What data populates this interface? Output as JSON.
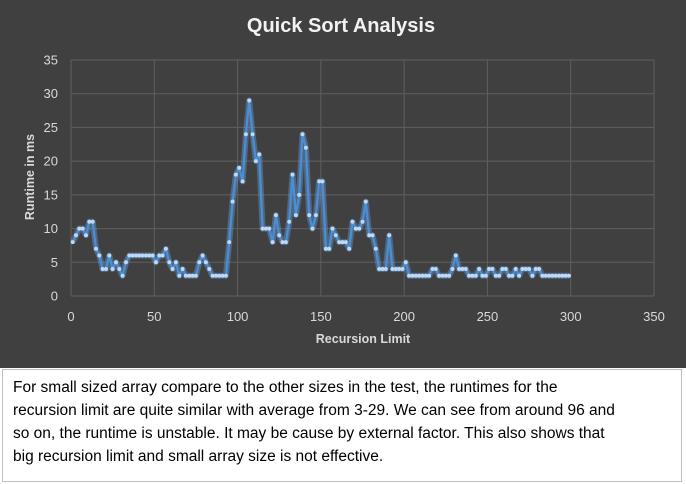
{
  "chart_data": {
    "type": "line",
    "title": "Quick Sort Analysis",
    "xlabel": "Recursion Limit",
    "ylabel": "Runtime in ms",
    "xlim": [
      0,
      350
    ],
    "ylim": [
      0,
      35
    ],
    "xticks": [
      0,
      50,
      100,
      150,
      200,
      250,
      300,
      350
    ],
    "yticks": [
      0,
      5,
      10,
      15,
      20,
      25,
      30,
      35
    ],
    "grid": true,
    "legend": "none",
    "colors": {
      "line": "#4a8fd6",
      "glow": "#6fb3ff",
      "marker": "#bcd9f7",
      "grid": "#5f5f5f",
      "background": "#404040"
    },
    "series": [
      {
        "x": [
          1,
          3,
          5,
          7,
          9,
          11,
          13,
          15,
          17,
          19,
          21,
          23,
          25,
          27,
          29,
          31,
          33,
          35,
          37,
          39,
          41,
          43,
          45,
          47,
          49,
          51,
          53,
          55,
          57,
          59,
          61,
          63,
          65,
          67,
          69,
          71,
          73,
          75,
          77,
          79,
          81,
          83,
          85,
          87,
          89,
          91,
          93,
          95,
          97,
          99,
          101,
          103,
          105,
          107,
          109,
          111,
          113,
          115,
          117,
          119,
          121,
          123,
          125,
          127,
          129,
          131,
          133,
          135,
          137,
          139,
          141,
          143,
          145,
          147,
          149,
          151,
          153,
          155,
          157,
          159,
          161,
          163,
          165,
          167,
          169,
          171,
          173,
          175,
          177,
          179,
          181,
          183,
          185,
          187,
          189,
          191,
          193,
          195,
          197,
          199,
          201,
          203,
          205,
          207,
          209,
          211,
          213,
          215,
          217,
          219,
          221,
          223,
          225,
          227,
          229,
          231,
          233,
          235,
          237,
          239,
          241,
          243,
          245,
          247,
          249,
          251,
          253,
          255,
          257,
          259,
          261,
          263,
          265,
          267,
          269,
          271,
          273,
          275,
          277,
          279,
          281,
          283,
          285,
          287,
          289,
          291,
          293,
          295,
          297,
          299
        ],
        "y": [
          8,
          9,
          10,
          10,
          9,
          11,
          11,
          7,
          6,
          4,
          4,
          6,
          4,
          5,
          4,
          3,
          5,
          6,
          6,
          6,
          6,
          6,
          6,
          6,
          6,
          5,
          6,
          6,
          7,
          5,
          4,
          5,
          3,
          4,
          3,
          3,
          3,
          3,
          5,
          6,
          5,
          4,
          3,
          3,
          3,
          3,
          3,
          8,
          14,
          18,
          19,
          17,
          24,
          29,
          24,
          20,
          21,
          10,
          10,
          10,
          8,
          12,
          9,
          8,
          8,
          11,
          18,
          12,
          15,
          24,
          22,
          12,
          10,
          12,
          17,
          17,
          7,
          7,
          10,
          9,
          8,
          8,
          8,
          7,
          11,
          10,
          10,
          11,
          14,
          9,
          9,
          7,
          4,
          4,
          4,
          9,
          4,
          4,
          4,
          4,
          5,
          3,
          3,
          3,
          3,
          3,
          3,
          3,
          4,
          4,
          3,
          3,
          3,
          3,
          4,
          6,
          4,
          4,
          4,
          3,
          3,
          3,
          4,
          3,
          3,
          4,
          4,
          3,
          3,
          4,
          4,
          3,
          3,
          4,
          3,
          4,
          4,
          4,
          3,
          4,
          4,
          3,
          3,
          3,
          3,
          3,
          3,
          3,
          3,
          3
        ]
      }
    ]
  },
  "caption": {
    "line1": "For small sized array compare to the other sizes in the test, the runtimes for the",
    "line2": "recursion limit are quite similar with average from 3-29. We can see from around 96 and",
    "line3": "so on, the runtime is unstable. It may be cause by external factor. This also shows that",
    "line4": "big recursion limit and small array size is not effective."
  }
}
